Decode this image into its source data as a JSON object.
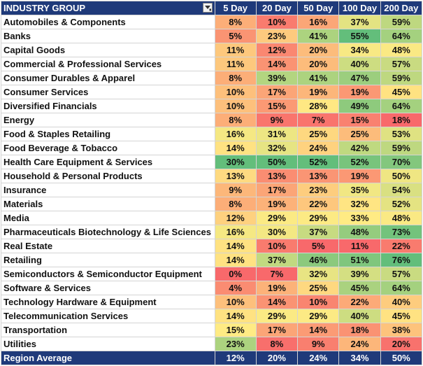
{
  "header": {
    "name_label": "INDUSTRY GROUP",
    "columns": [
      "5 Day",
      "20 Day",
      "50 Day",
      "100 Day",
      "200 Day"
    ]
  },
  "rows": [
    {
      "name": "Automobiles & Components",
      "values": [
        8,
        10,
        16,
        37,
        59
      ]
    },
    {
      "name": "Banks",
      "values": [
        5,
        23,
        41,
        55,
        64
      ]
    },
    {
      "name": "Capital Goods",
      "values": [
        11,
        12,
        20,
        34,
        48
      ]
    },
    {
      "name": "Commercial & Professional Services",
      "values": [
        11,
        14,
        20,
        40,
        57
      ]
    },
    {
      "name": "Consumer Durables & Apparel",
      "values": [
        8,
        39,
        41,
        47,
        59
      ]
    },
    {
      "name": "Consumer Services",
      "values": [
        10,
        17,
        19,
        19,
        45
      ]
    },
    {
      "name": "Diversified Financials",
      "values": [
        10,
        15,
        28,
        49,
        64
      ]
    },
    {
      "name": "Energy",
      "values": [
        8,
        9,
        7,
        15,
        18
      ]
    },
    {
      "name": "Food & Staples Retailing",
      "values": [
        16,
        31,
        25,
        25,
        53
      ]
    },
    {
      "name": "Food Beverage & Tobacco",
      "values": [
        14,
        32,
        24,
        42,
        59
      ]
    },
    {
      "name": "Health Care Equipment & Services",
      "values": [
        30,
        50,
        52,
        52,
        70
      ]
    },
    {
      "name": "Household & Personal Products",
      "values": [
        13,
        13,
        13,
        19,
        50
      ]
    },
    {
      "name": "Insurance",
      "values": [
        9,
        17,
        23,
        35,
        54
      ]
    },
    {
      "name": "Materials",
      "values": [
        8,
        19,
        22,
        32,
        52
      ]
    },
    {
      "name": "Media",
      "values": [
        12,
        29,
        29,
        33,
        48
      ]
    },
    {
      "name": "Pharmaceuticals Biotechnology & Life Sciences",
      "values": [
        16,
        30,
        37,
        48,
        73
      ]
    },
    {
      "name": "Real Estate",
      "values": [
        14,
        10,
        5,
        11,
        22
      ]
    },
    {
      "name": "Retailing",
      "values": [
        14,
        37,
        46,
        51,
        76
      ]
    },
    {
      "name": "Semiconductors & Semiconductor Equipment",
      "values": [
        0,
        7,
        32,
        39,
        57
      ]
    },
    {
      "name": "Software & Services",
      "values": [
        4,
        19,
        25,
        45,
        64
      ]
    },
    {
      "name": "Technology Hardware & Equipment",
      "values": [
        10,
        14,
        10,
        22,
        40
      ]
    },
    {
      "name": "Telecommunication Services",
      "values": [
        14,
        29,
        29,
        40,
        45
      ]
    },
    {
      "name": "Transportation",
      "values": [
        15,
        17,
        14,
        18,
        38
      ]
    },
    {
      "name": "Utilities",
      "values": [
        23,
        8,
        9,
        24,
        20
      ]
    }
  ],
  "footer": {
    "label": "Region Average",
    "values": [
      "12%",
      "20%",
      "24%",
      "34%",
      "50%"
    ]
  },
  "value_suffix": "%",
  "column_color_ranges": [
    {
      "min": 0,
      "max": 30
    },
    {
      "min": 7,
      "max": 50
    },
    {
      "min": 5,
      "max": 52
    },
    {
      "min": 11,
      "max": 55
    },
    {
      "min": 18,
      "max": 76
    }
  ],
  "colors": {
    "header_bg": "#1f3a7a",
    "low": "#f8696b",
    "mid": "#ffeb84",
    "high": "#63be7b"
  }
}
